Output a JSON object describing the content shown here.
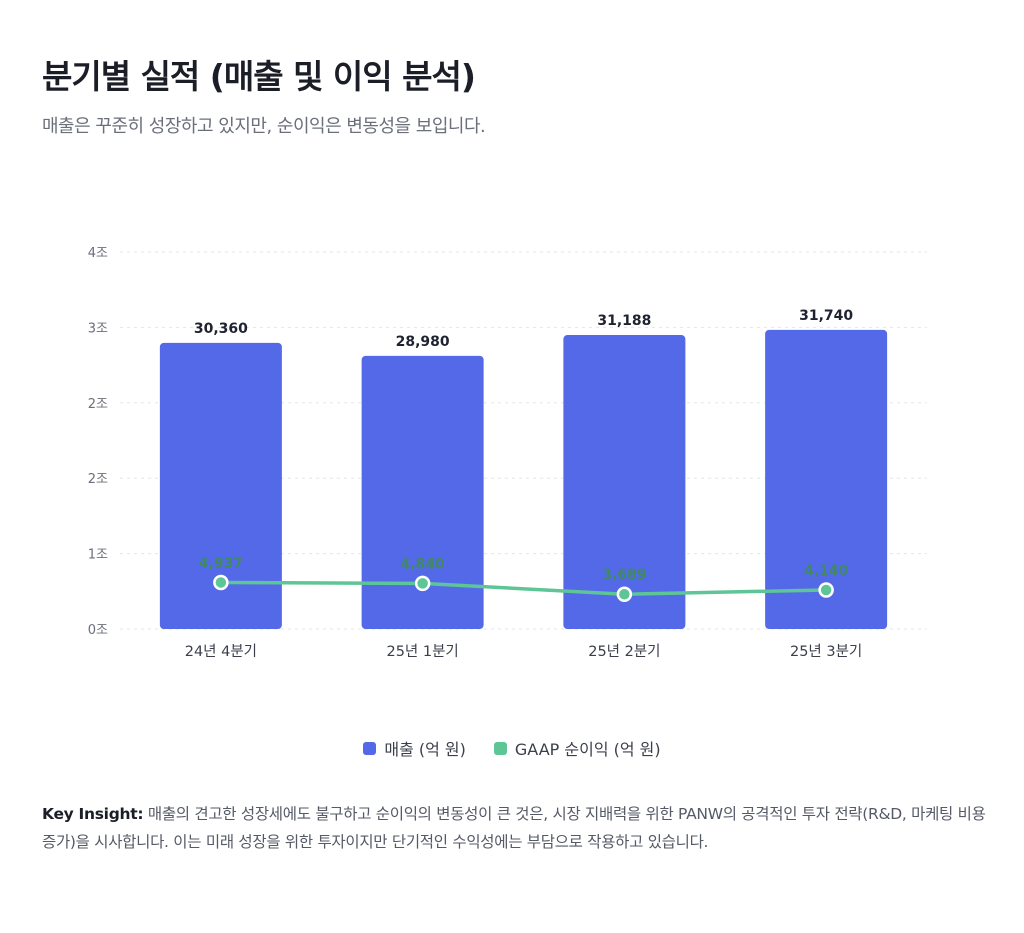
{
  "header": {
    "title": "분기별 실적 (매출 및 이익 분석)",
    "subtitle": "매출은 꾸준히 성장하고 있지만, 순이익은 변동성을 보입니다."
  },
  "chart_data": {
    "type": "bar",
    "categories": [
      "24년 4분기",
      "25년 1분기",
      "25년 2분기",
      "25년 3분기"
    ],
    "series": [
      {
        "name": "매출 (억 원)",
        "type": "bar",
        "color": "#5469E8",
        "values": [
          30360,
          28980,
          31188,
          31740
        ],
        "labels": [
          "30,360",
          "28,980",
          "31,188",
          "31,740"
        ]
      },
      {
        "name": "GAAP 순이익 (억 원)",
        "type": "line",
        "color": "#5DC596",
        "values": [
          4937,
          4840,
          3689,
          4140
        ],
        "labels": [
          "4,937",
          "4,840",
          "3,689",
          "4,140"
        ]
      }
    ],
    "ylim": [
      0,
      40000
    ],
    "yticks": [
      0,
      8000,
      16000,
      24000,
      32000,
      40000
    ],
    "ytick_labels": [
      "0조",
      "1조",
      "2조",
      "2조",
      "3조",
      "4조"
    ],
    "grid": true,
    "legend": "bottom"
  },
  "insight": {
    "label": "Key Insight:",
    "text": "매출의 견고한 성장세에도 불구하고 순이익의 변동성이 큰 것은, 시장 지배력을 위한 PANW의 공격적인 투자 전략(R&D, 마케팅 비용 증가)을 시사합니다. 이는 미래 성장을 위한 투자이지만 단기적인 수익성에는 부담으로 작용하고 있습니다."
  }
}
